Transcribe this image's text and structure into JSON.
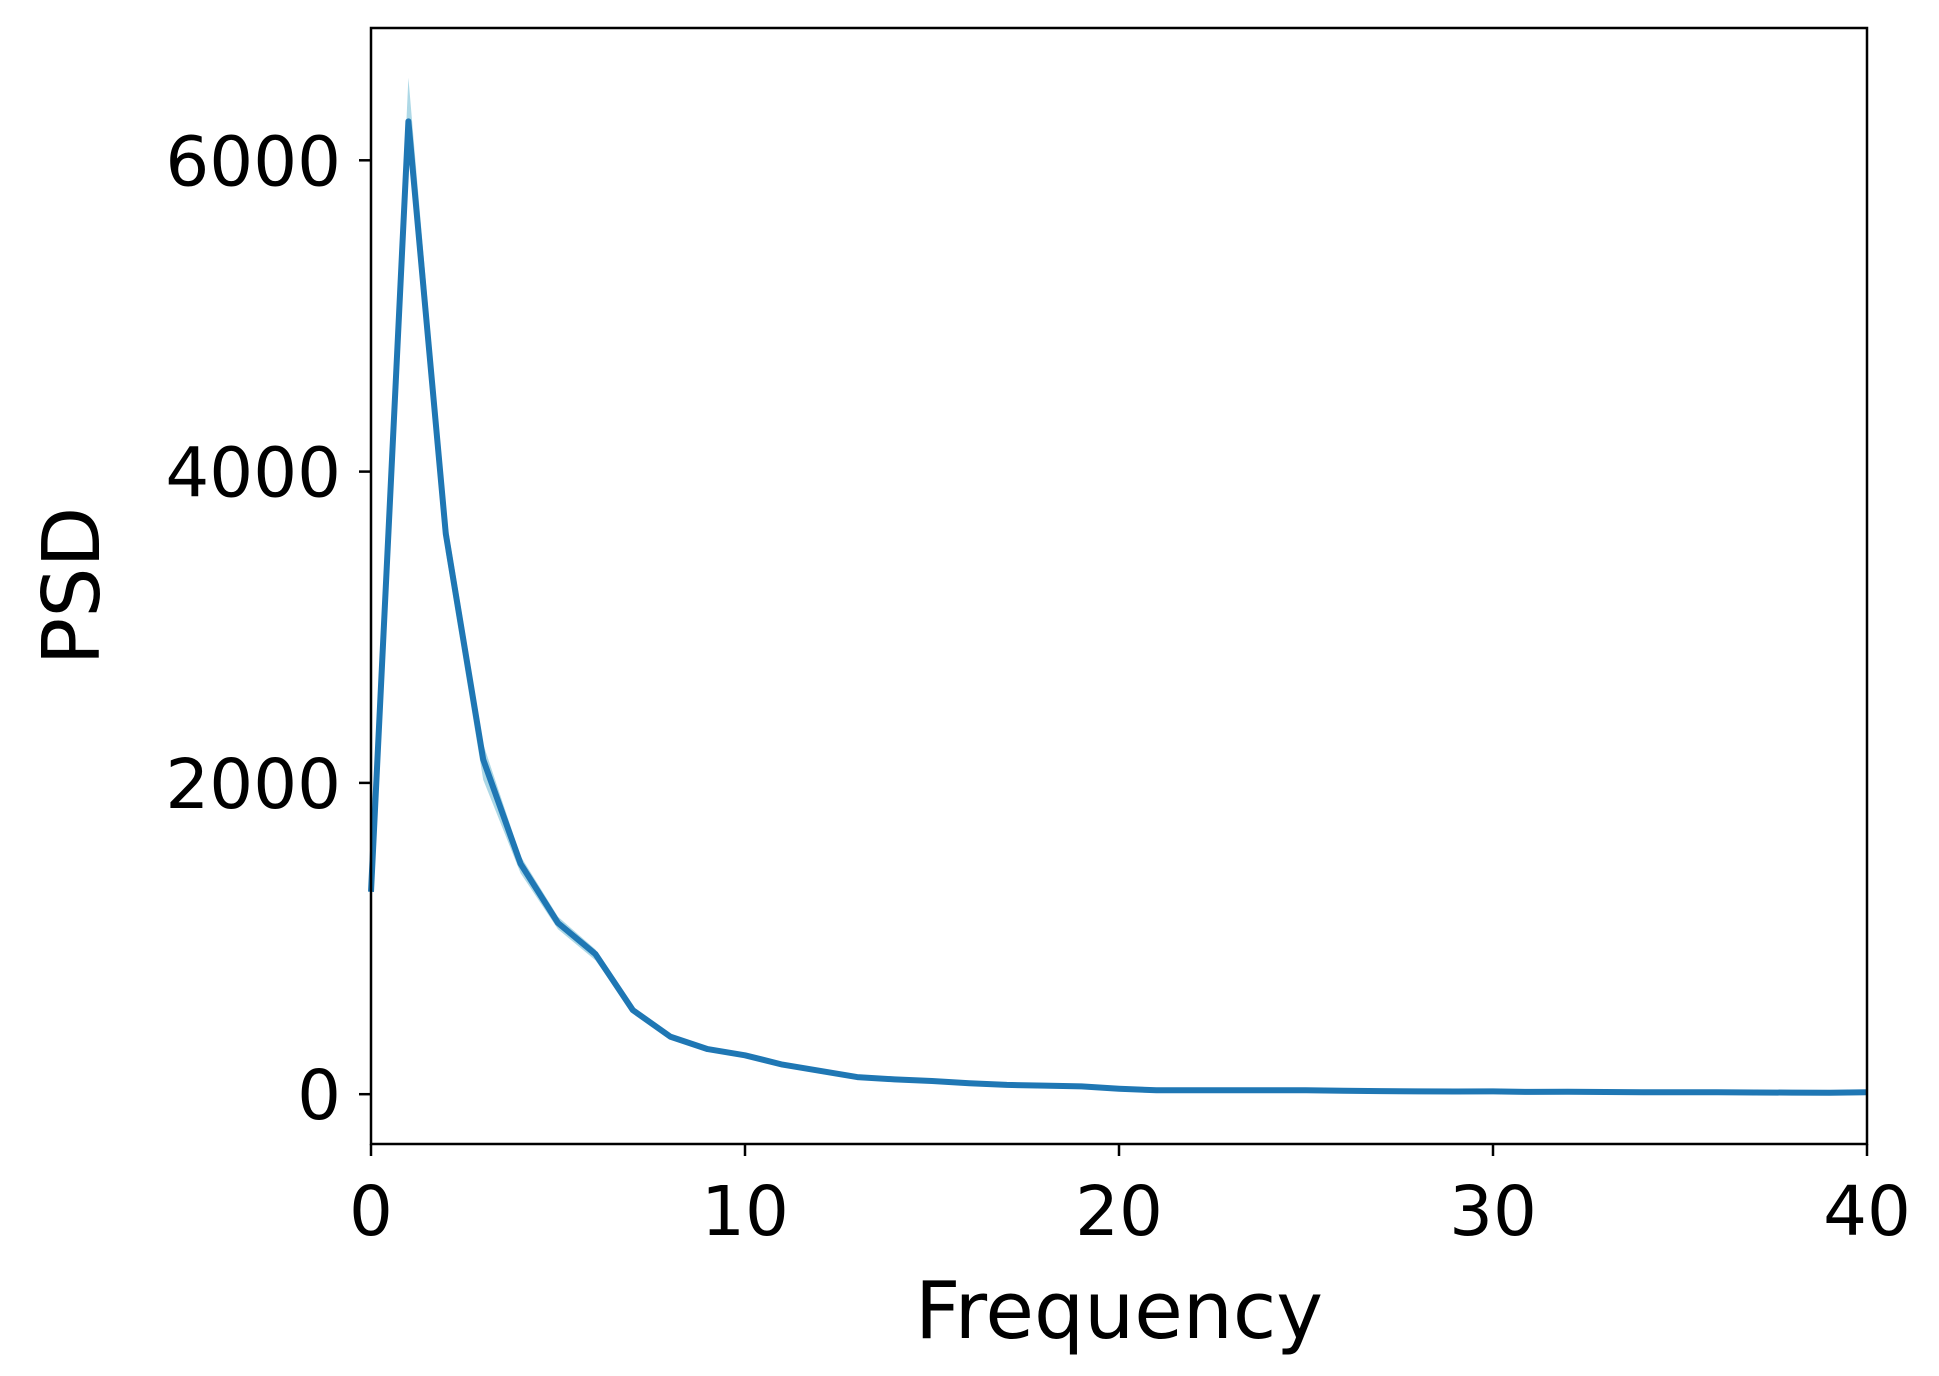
{
  "chart_data": {
    "type": "line",
    "title": "",
    "xlabel": "Frequency",
    "ylabel": "PSD",
    "xlim": [
      0,
      40
    ],
    "ylim": [
      -320,
      6850
    ],
    "xticks": [
      0,
      10,
      20,
      30,
      40
    ],
    "yticks": [
      0,
      2000,
      4000,
      6000
    ],
    "grid": false,
    "legend": "none",
    "colors": {
      "line": "#1f77b4",
      "band": "#add8e6"
    },
    "series": [
      {
        "x": [
          0,
          1,
          2,
          3,
          4,
          5,
          6,
          7,
          8,
          9,
          10,
          11,
          12,
          13,
          14,
          15,
          16,
          17,
          18,
          19,
          20,
          21,
          22,
          23,
          24,
          25,
          26,
          27,
          28,
          29,
          30,
          31,
          32,
          33,
          34,
          35,
          36,
          37,
          38,
          39,
          40
        ],
        "y": [
          1300,
          6250,
          3600,
          2150,
          1480,
          1100,
          900,
          540,
          370,
          290,
          250,
          190,
          150,
          110,
          95,
          85,
          70,
          60,
          55,
          50,
          35,
          25,
          25,
          25,
          25,
          25,
          22,
          20,
          18,
          17,
          18,
          15,
          16,
          14,
          13,
          13,
          12,
          11,
          10,
          9,
          12
        ],
        "y_lower": [
          1280,
          6200,
          3480,
          2020,
          1420,
          1060,
          860,
          525,
          360,
          283,
          243,
          185,
          146,
          107,
          92,
          82,
          68,
          58,
          53,
          48,
          33,
          23,
          23,
          23,
          23,
          23,
          20,
          18,
          16,
          15,
          16,
          13,
          14,
          12,
          11,
          11,
          10,
          9,
          8,
          7,
          10
        ],
        "y_upper": [
          1320,
          6530,
          3720,
          2250,
          1530,
          1140,
          930,
          555,
          380,
          297,
          257,
          195,
          154,
          113,
          98,
          88,
          72,
          62,
          57,
          52,
          37,
          27,
          27,
          27,
          27,
          27,
          24,
          22,
          20,
          19,
          20,
          17,
          18,
          16,
          15,
          15,
          14,
          13,
          12,
          11,
          14
        ]
      }
    ]
  }
}
